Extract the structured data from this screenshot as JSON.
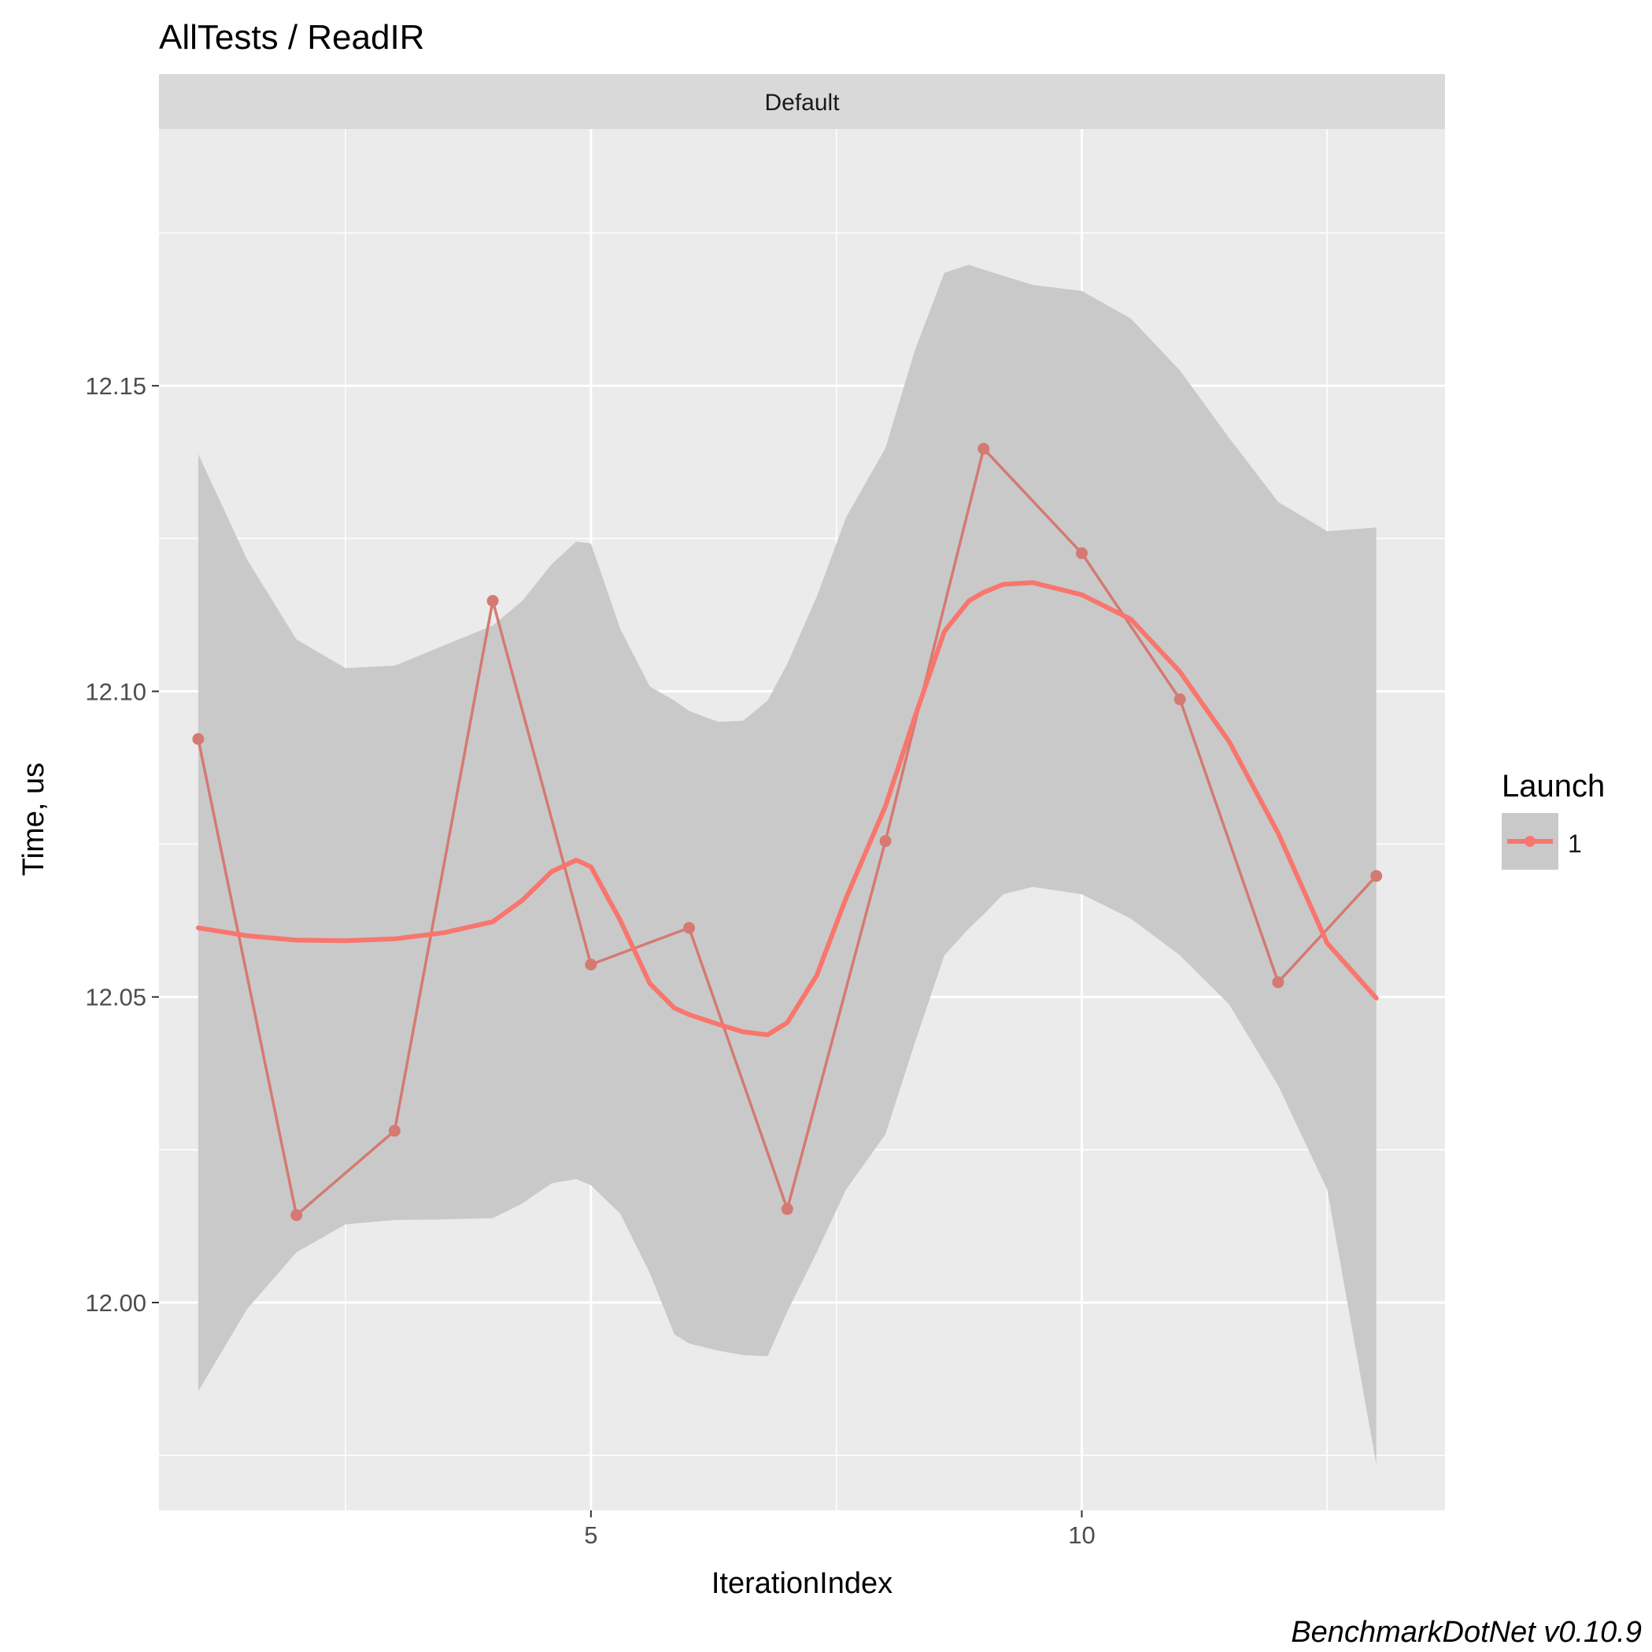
{
  "chart_data": {
    "type": "line",
    "title": "AllTests / ReadIR",
    "facet_label": "Default",
    "xlabel": "IterationIndex",
    "ylabel": "Time, us",
    "xlim": [
      0.6,
      13.7
    ],
    "ylim": [
      11.966,
      12.192
    ],
    "x_major_ticks": [
      5,
      10
    ],
    "x_minor_ticks": [
      2.5,
      7.5,
      12.5
    ],
    "y_major_ticks": [
      12.0,
      12.05,
      12.1,
      12.15
    ],
    "y_minor_ticks": [
      11.975,
      12.025,
      12.075,
      12.125,
      12.175
    ],
    "x_tick_labels": [
      "5",
      "10"
    ],
    "y_tick_labels": [
      "12.00",
      "12.05",
      "12.10",
      "12.15"
    ],
    "grid": true,
    "legend": {
      "title": "Launch",
      "position": "right",
      "entries": [
        "1"
      ]
    },
    "caption": "BenchmarkDotNet v0.10.9",
    "colors": {
      "series": "#f8766d",
      "series_raw": "#d47a72",
      "ribbon": "#c9c9c9",
      "panel": "#ebebeb",
      "strip": "#d9d9d9",
      "grid": "#ffffff"
    },
    "series": [
      {
        "name": "1",
        "x": [
          1,
          2,
          3,
          4,
          5,
          6,
          7,
          8,
          9,
          10,
          11,
          12,
          13
        ],
        "values": [
          12.0922,
          12.0143,
          12.0281,
          12.1148,
          12.0553,
          12.0613,
          12.0153,
          12.0755,
          12.1397,
          12.1226,
          12.0987,
          12.0524,
          12.0698
        ]
      }
    ],
    "smooth": {
      "x": [
        1,
        1.5,
        2,
        2.5,
        3,
        3.5,
        4,
        4.3,
        4.6,
        4.85,
        5,
        5.3,
        5.6,
        5.85,
        6,
        6.3,
        6.55,
        6.8,
        7,
        7.3,
        7.6,
        8,
        8.3,
        8.6,
        8.85,
        9,
        9.2,
        9.5,
        10,
        10.5,
        11,
        11.5,
        12,
        12.5,
        13
      ],
      "y": [
        12.0613,
        12.06,
        12.0593,
        12.0592,
        12.0595,
        12.0605,
        12.0623,
        12.0658,
        12.0705,
        12.0724,
        12.0713,
        12.0625,
        12.0522,
        12.0482,
        12.0471,
        12.0455,
        12.0443,
        12.0438,
        12.0458,
        12.0535,
        12.0662,
        12.0812,
        12.0958,
        12.1098,
        12.1148,
        12.1162,
        12.1175,
        12.1178,
        12.1158,
        12.1118,
        12.1032,
        12.0918,
        12.0768,
        12.0588,
        12.0498
      ],
      "lower": [
        11.9855,
        11.999,
        12.0082,
        12.0128,
        12.0135,
        12.0136,
        12.0138,
        12.0162,
        12.0195,
        12.0202,
        12.0192,
        12.0145,
        12.0048,
        11.9948,
        11.9933,
        11.9921,
        11.9914,
        11.9912,
        11.9985,
        12.0082,
        12.0185,
        12.0275,
        12.0425,
        12.0568,
        12.0612,
        12.0635,
        12.0668,
        12.068,
        12.0668,
        12.0628,
        12.0568,
        12.0488,
        12.0355,
        12.0185,
        11.9735
      ],
      "upper": [
        12.1388,
        12.1215,
        12.1085,
        12.1038,
        12.1042,
        12.1075,
        12.1108,
        12.1148,
        12.1208,
        12.1245,
        12.1242,
        12.1102,
        12.1008,
        12.0985,
        12.0968,
        12.095,
        12.0952,
        12.0985,
        12.1045,
        12.1155,
        12.1285,
        12.1398,
        12.1558,
        12.1685,
        12.1698,
        12.169,
        12.168,
        12.1665,
        12.1655,
        12.161,
        12.1525,
        12.1415,
        12.131,
        12.1262,
        12.1268
      ]
    }
  }
}
